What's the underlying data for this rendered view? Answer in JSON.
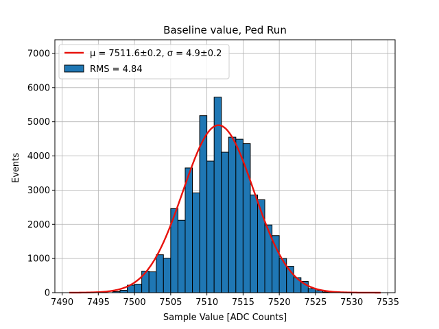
{
  "chart_data": {
    "type": "bar",
    "title": "Baseline value, Ped Run",
    "xlabel": "Sample Value [ADC Counts]",
    "ylabel": "Events",
    "xlim": [
      7489,
      7536
    ],
    "ylim": [
      0,
      7400
    ],
    "xticks": [
      7490,
      7495,
      7500,
      7505,
      7510,
      7515,
      7520,
      7525,
      7530,
      7535
    ],
    "yticks": [
      0,
      1000,
      2000,
      3000,
      4000,
      5000,
      6000,
      7000
    ],
    "grid": true,
    "legend_position": "top-left",
    "bin_width": 1,
    "bins": [
      7497,
      7498,
      7499,
      7500,
      7501,
      7502,
      7503,
      7504,
      7505,
      7506,
      7507,
      7508,
      7509,
      7510,
      7511,
      7512,
      7513,
      7514,
      7515,
      7516,
      7517,
      7518,
      7519,
      7520,
      7521,
      7522,
      7523,
      7524,
      7525,
      7526,
      7527
    ],
    "values": [
      30,
      70,
      220,
      250,
      630,
      610,
      1110,
      1010,
      2460,
      2120,
      3650,
      2920,
      5180,
      3850,
      5720,
      4110,
      4550,
      4490,
      4360,
      2860,
      2720,
      1980,
      1670,
      1000,
      770,
      440,
      330,
      120,
      60,
      20,
      10
    ],
    "fit": {
      "mu": 7511.6,
      "sigma": 4.9,
      "amplitude": 4900,
      "x_range": [
        7491,
        7534
      ],
      "label": "μ = 7511.6±0.2, σ = 4.9±0.2"
    },
    "histogram_label": "RMS = 4.84",
    "colors": {
      "bars": "#1f77b4",
      "bar_edge": "#000000",
      "fit": "#e8120c",
      "grid": "#b0b0b0"
    }
  }
}
